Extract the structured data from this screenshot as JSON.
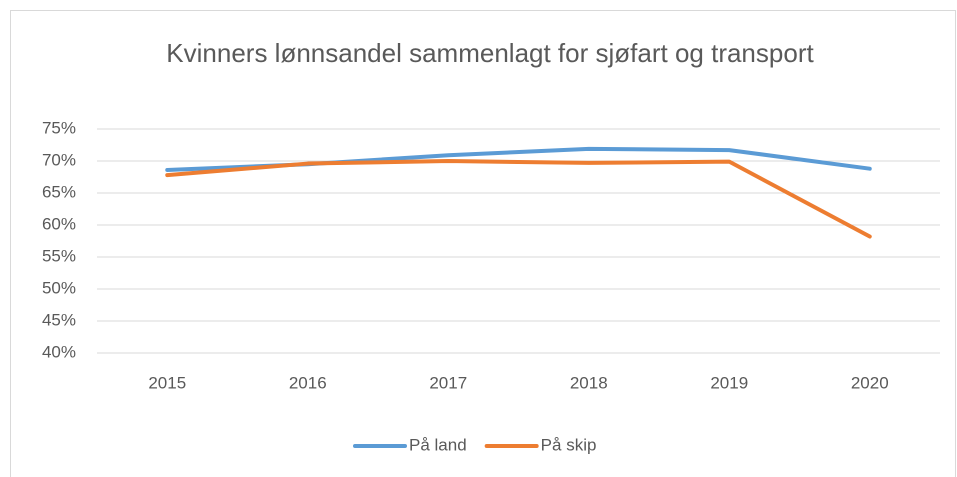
{
  "chart_data": {
    "type": "line",
    "title": "Kvinners lønnsandel sammenlagt for sjøfart og transport",
    "categories": [
      "2015",
      "2016",
      "2017",
      "2018",
      "2019",
      "2020"
    ],
    "series": [
      {
        "name": "På land",
        "color": "#5b9bd5",
        "values": [
          68.6,
          69.5,
          70.9,
          71.9,
          71.7,
          68.8
        ]
      },
      {
        "name": "På skip",
        "color": "#ed7d31",
        "values": [
          67.8,
          69.6,
          70.0,
          69.7,
          69.9,
          58.2
        ]
      }
    ],
    "ylim": [
      40,
      75
    ],
    "yticks": [
      {
        "value": 40,
        "label": "40%"
      },
      {
        "value": 45,
        "label": "45%"
      },
      {
        "value": 50,
        "label": "50%"
      },
      {
        "value": 55,
        "label": "55%"
      },
      {
        "value": 60,
        "label": "60%"
      },
      {
        "value": 65,
        "label": "65%"
      },
      {
        "value": 70,
        "label": "70%"
      },
      {
        "value": 75,
        "label": "75%"
      }
    ],
    "grid": true,
    "legend": "bottom"
  }
}
